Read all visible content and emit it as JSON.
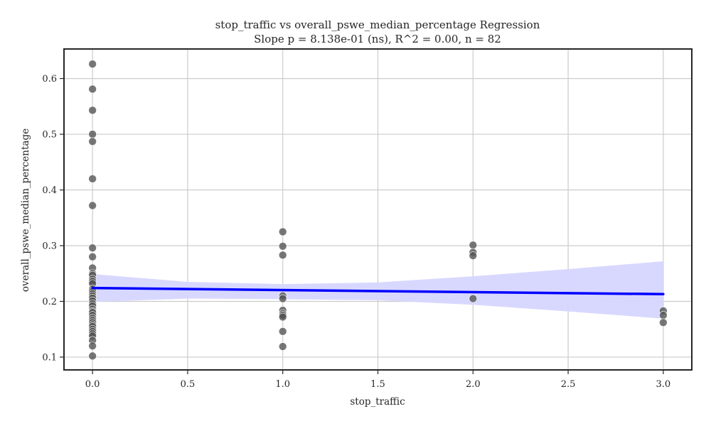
{
  "chart_data": {
    "type": "scatter",
    "title": "stop_traffic vs overall_pswe_median_percentage Regression",
    "subtitle": "Slope p = 8.138e-01 (ns), R^2 = 0.00, n = 82",
    "xlabel": "stop_traffic",
    "ylabel": "overall_pswe_median_percentage",
    "xlim": [
      -0.15,
      3.15
    ],
    "ylim": [
      0.077,
      0.653
    ],
    "xticks": [
      0.0,
      0.5,
      1.0,
      1.5,
      2.0,
      2.5,
      3.0
    ],
    "xtick_labels": [
      "0.0",
      "0.5",
      "1.0",
      "1.5",
      "2.0",
      "2.5",
      "3.0"
    ],
    "yticks": [
      0.1,
      0.2,
      0.3,
      0.4,
      0.5,
      0.6
    ],
    "ytick_labels": [
      "0.1",
      "0.2",
      "0.3",
      "0.4",
      "0.5",
      "0.6"
    ],
    "grid": true,
    "points": [
      {
        "x": 0,
        "y": 0.626
      },
      {
        "x": 0,
        "y": 0.581
      },
      {
        "x": 0,
        "y": 0.543
      },
      {
        "x": 0,
        "y": 0.5
      },
      {
        "x": 0,
        "y": 0.487
      },
      {
        "x": 0,
        "y": 0.42
      },
      {
        "x": 0,
        "y": 0.372
      },
      {
        "x": 0,
        "y": 0.296
      },
      {
        "x": 0,
        "y": 0.28
      },
      {
        "x": 0,
        "y": 0.26
      },
      {
        "x": 0,
        "y": 0.25
      },
      {
        "x": 0,
        "y": 0.247
      },
      {
        "x": 0,
        "y": 0.24
      },
      {
        "x": 0,
        "y": 0.236
      },
      {
        "x": 0,
        "y": 0.232
      },
      {
        "x": 0,
        "y": 0.222
      },
      {
        "x": 0,
        "y": 0.218
      },
      {
        "x": 0,
        "y": 0.214
      },
      {
        "x": 0,
        "y": 0.21
      },
      {
        "x": 0,
        "y": 0.206
      },
      {
        "x": 0,
        "y": 0.201
      },
      {
        "x": 0,
        "y": 0.196
      },
      {
        "x": 0,
        "y": 0.192
      },
      {
        "x": 0,
        "y": 0.186
      },
      {
        "x": 0,
        "y": 0.182
      },
      {
        "x": 0,
        "y": 0.18
      },
      {
        "x": 0,
        "y": 0.175
      },
      {
        "x": 0,
        "y": 0.17
      },
      {
        "x": 0,
        "y": 0.166
      },
      {
        "x": 0,
        "y": 0.162
      },
      {
        "x": 0,
        "y": 0.158
      },
      {
        "x": 0,
        "y": 0.155
      },
      {
        "x": 0,
        "y": 0.15
      },
      {
        "x": 0,
        "y": 0.146
      },
      {
        "x": 0,
        "y": 0.142
      },
      {
        "x": 0,
        "y": 0.138
      },
      {
        "x": 0,
        "y": 0.13
      },
      {
        "x": 0,
        "y": 0.12
      },
      {
        "x": 0,
        "y": 0.102
      },
      {
        "x": 1,
        "y": 0.325
      },
      {
        "x": 1,
        "y": 0.299
      },
      {
        "x": 1,
        "y": 0.283
      },
      {
        "x": 1,
        "y": 0.21
      },
      {
        "x": 1,
        "y": 0.205
      },
      {
        "x": 1,
        "y": 0.184
      },
      {
        "x": 1,
        "y": 0.178
      },
      {
        "x": 1,
        "y": 0.175
      },
      {
        "x": 1,
        "y": 0.172
      },
      {
        "x": 1,
        "y": 0.146
      },
      {
        "x": 1,
        "y": 0.119
      },
      {
        "x": 2,
        "y": 0.301
      },
      {
        "x": 2,
        "y": 0.288
      },
      {
        "x": 2,
        "y": 0.282
      },
      {
        "x": 2,
        "y": 0.205
      },
      {
        "x": 3,
        "y": 0.183
      },
      {
        "x": 3,
        "y": 0.175
      },
      {
        "x": 3,
        "y": 0.162
      }
    ],
    "regression_line": {
      "x": [
        0,
        3
      ],
      "y": [
        0.224,
        0.213
      ]
    },
    "confidence_band": {
      "x": [
        0,
        0.5,
        1,
        1.5,
        2,
        2.5,
        3
      ],
      "upper": [
        0.249,
        0.235,
        0.231,
        0.234,
        0.245,
        0.258,
        0.272
      ],
      "lower": [
        0.199,
        0.205,
        0.204,
        0.202,
        0.194,
        0.182,
        0.169
      ]
    },
    "colors": {
      "points": "#555555",
      "line": "#0000ff",
      "band": "#d6d6ff",
      "grid": "#cccccc",
      "frame": "#262626"
    }
  }
}
